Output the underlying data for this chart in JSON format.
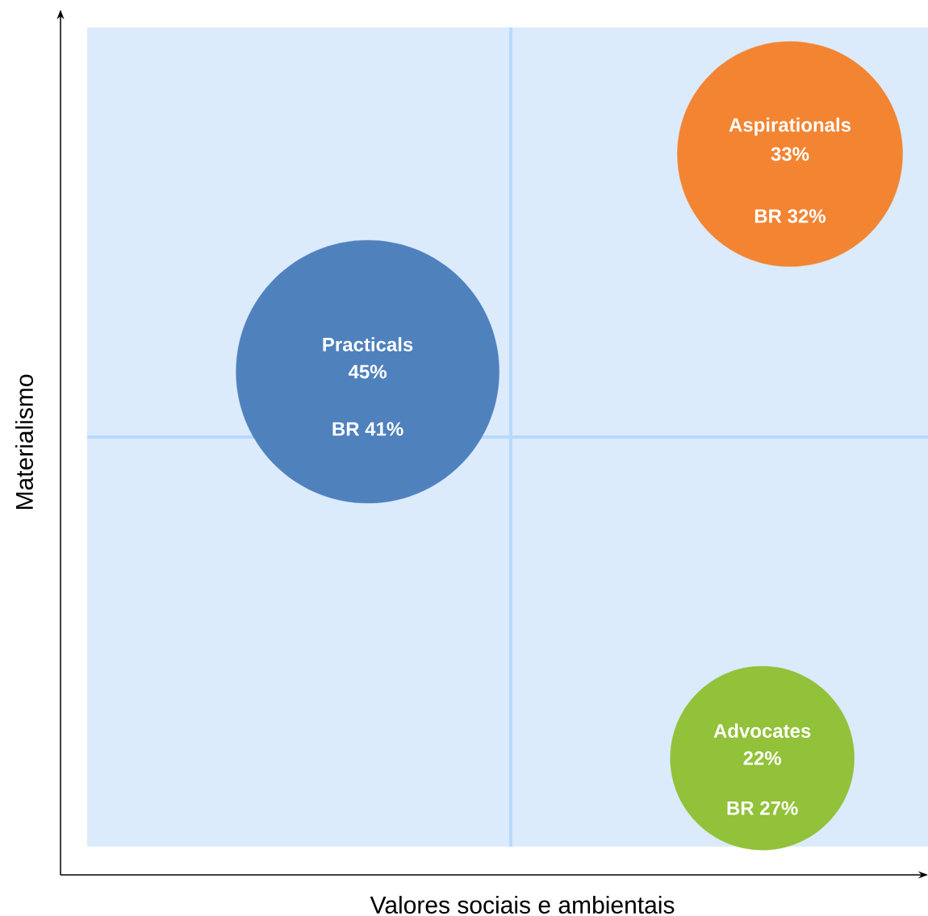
{
  "chart_data": {
    "type": "other",
    "xlabel": "Valores sociais e ambientais",
    "ylabel": "Materialismo",
    "categories": [
      "Practicals",
      "Aspirationals",
      "Advocates"
    ],
    "values": [
      45,
      33,
      22
    ],
    "value_labels": [
      "45%",
      "33%",
      "22%"
    ],
    "colors": [
      "#4f81bd",
      "#f38432",
      "#92c13a"
    ],
    "annotations": [
      "BR 41%",
      "BR 32%",
      "BR 27%"
    ]
  }
}
